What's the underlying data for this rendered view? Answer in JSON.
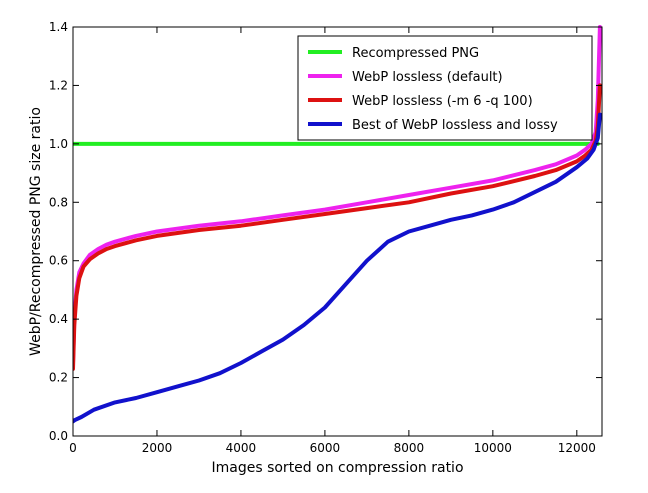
{
  "chart_data": {
    "type": "line",
    "title": "",
    "xlabel": "Images sorted on compression ratio",
    "ylabel": "WebP/Recompressed PNG size ratio",
    "xlim": [
      0,
      12600
    ],
    "ylim": [
      0.0,
      1.4
    ],
    "x_ticks": [
      "0",
      "2000",
      "4000",
      "6000",
      "8000",
      "10000",
      "12000"
    ],
    "x_tick_values": [
      0,
      2000,
      4000,
      6000,
      8000,
      10000,
      12000
    ],
    "y_ticks": [
      "0.0",
      "0.2",
      "0.4",
      "0.6",
      "0.8",
      "1.0",
      "1.2",
      "1.4"
    ],
    "y_tick_values": [
      0.0,
      0.2,
      0.4,
      0.6,
      0.8,
      1.0,
      1.2,
      1.4
    ],
    "grid": false,
    "legend_position": "top-right",
    "series": [
      {
        "name": "Recompressed PNG",
        "color": "#22ee22",
        "x": [
          0,
          12500
        ],
        "y": [
          1.0,
          1.0
        ]
      },
      {
        "name": "WebP lossless (default)",
        "color": "#ee22ee",
        "x": [
          0,
          30,
          80,
          150,
          250,
          400,
          600,
          800,
          1000,
          1500,
          2000,
          3000,
          4000,
          5000,
          6000,
          7000,
          8000,
          9000,
          10000,
          11000,
          11500,
          12000,
          12200,
          12350,
          12450,
          12500,
          12550
        ],
        "y": [
          0.25,
          0.4,
          0.5,
          0.56,
          0.59,
          0.62,
          0.64,
          0.655,
          0.665,
          0.685,
          0.7,
          0.72,
          0.735,
          0.755,
          0.775,
          0.8,
          0.825,
          0.85,
          0.875,
          0.91,
          0.93,
          0.96,
          0.98,
          1.0,
          1.04,
          1.15,
          1.4
        ]
      },
      {
        "name": "WebP lossless (-m 6 -q 100)",
        "color": "#dd1111",
        "x": [
          0,
          30,
          80,
          150,
          250,
          400,
          600,
          800,
          1000,
          1500,
          2000,
          3000,
          4000,
          5000,
          6000,
          7000,
          8000,
          9000,
          10000,
          11000,
          11500,
          12000,
          12200,
          12350,
          12450,
          12500,
          12550
        ],
        "y": [
          0.23,
          0.38,
          0.48,
          0.54,
          0.58,
          0.605,
          0.625,
          0.64,
          0.65,
          0.67,
          0.685,
          0.705,
          0.72,
          0.74,
          0.76,
          0.78,
          0.8,
          0.83,
          0.855,
          0.89,
          0.91,
          0.94,
          0.96,
          0.98,
          1.01,
          1.06,
          1.2
        ]
      },
      {
        "name": "Best of WebP lossless and lossy",
        "color": "#1111cc",
        "x": [
          0,
          50,
          200,
          500,
          1000,
          1500,
          2000,
          2500,
          3000,
          3500,
          4000,
          4500,
          5000,
          5500,
          6000,
          6500,
          7000,
          7500,
          8000,
          8500,
          9000,
          9500,
          10000,
          10500,
          11000,
          11500,
          12000,
          12250,
          12400,
          12500,
          12550
        ],
        "y": [
          0.05,
          0.055,
          0.065,
          0.09,
          0.115,
          0.13,
          0.15,
          0.17,
          0.19,
          0.215,
          0.25,
          0.29,
          0.33,
          0.38,
          0.44,
          0.52,
          0.6,
          0.665,
          0.7,
          0.72,
          0.74,
          0.755,
          0.775,
          0.8,
          0.835,
          0.87,
          0.92,
          0.95,
          0.98,
          1.02,
          1.1
        ]
      }
    ]
  }
}
